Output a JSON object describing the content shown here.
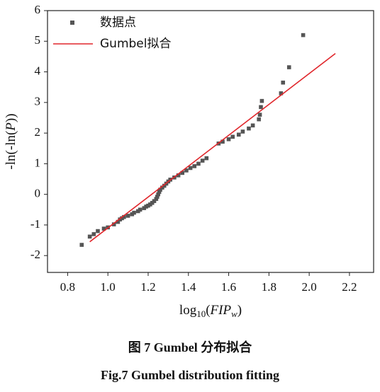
{
  "chart_data": {
    "type": "scatter",
    "x_label_parts": [
      "log",
      "10",
      "(",
      "FIP",
      "w",
      ")"
    ],
    "y_label_parts": [
      "-ln(-ln(",
      "P",
      "))"
    ],
    "xlim": [
      0.7,
      2.32
    ],
    "ylim": [
      -2.55,
      6.0
    ],
    "xticks": [
      {
        "value": 0.8,
        "label": "0.8"
      },
      {
        "value": 1.0,
        "label": "1.0"
      },
      {
        "value": 1.2,
        "label": "1.2"
      },
      {
        "value": 1.4,
        "label": "1.4"
      },
      {
        "value": 1.6,
        "label": "1.6"
      },
      {
        "value": 1.8,
        "label": "1.8"
      },
      {
        "value": 2.0,
        "label": "2.0"
      },
      {
        "value": 2.2,
        "label": "2.2"
      }
    ],
    "yticks": [
      -2,
      -1,
      0,
      1,
      2,
      3,
      4,
      5,
      6
    ],
    "legend": "upper left",
    "series": [
      {
        "name": "数据点",
        "type": "scatter",
        "color": "#555555",
        "x": [
          0.87,
          0.91,
          0.93,
          0.95,
          0.98,
          1.0,
          1.03,
          1.05,
          1.06,
          1.07,
          1.08,
          1.1,
          1.12,
          1.13,
          1.15,
          1.16,
          1.18,
          1.19,
          1.2,
          1.21,
          1.22,
          1.23,
          1.24,
          1.245,
          1.25,
          1.255,
          1.26,
          1.27,
          1.28,
          1.29,
          1.3,
          1.31,
          1.33,
          1.35,
          1.37,
          1.39,
          1.41,
          1.43,
          1.45,
          1.47,
          1.49,
          1.55,
          1.57,
          1.6,
          1.62,
          1.65,
          1.67,
          1.7,
          1.72,
          1.75,
          1.755,
          1.76,
          1.765,
          1.86,
          1.87,
          1.9,
          1.97
        ],
        "values": [
          -1.65,
          -1.38,
          -1.3,
          -1.2,
          -1.12,
          -1.08,
          -0.98,
          -0.9,
          -0.82,
          -0.78,
          -0.74,
          -0.7,
          -0.65,
          -0.6,
          -0.55,
          -0.5,
          -0.45,
          -0.4,
          -0.37,
          -0.33,
          -0.28,
          -0.22,
          -0.15,
          -0.08,
          0.0,
          0.08,
          0.15,
          0.22,
          0.28,
          0.35,
          0.42,
          0.48,
          0.55,
          0.62,
          0.7,
          0.78,
          0.86,
          0.92,
          1.0,
          1.1,
          1.18,
          1.66,
          1.72,
          1.8,
          1.88,
          1.95,
          2.05,
          2.15,
          2.25,
          2.45,
          2.6,
          2.85,
          3.05,
          3.3,
          3.65,
          4.15,
          5.2
        ]
      },
      {
        "name": "Gumbel拟合",
        "type": "line",
        "color": "#e0262b",
        "x": [
          0.91,
          2.13
        ],
        "values": [
          -1.55,
          4.6
        ]
      }
    ],
    "captions": [
      "图 7 Gumbel 分布拟合",
      "Fig.7 Gumbel distribution fitting"
    ]
  }
}
